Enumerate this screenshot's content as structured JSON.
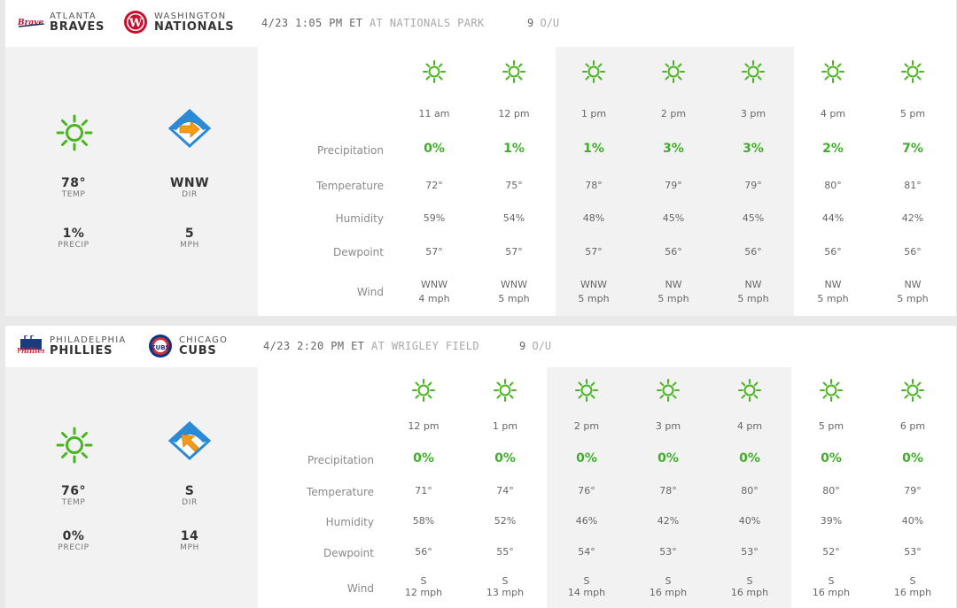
{
  "colors": {
    "accent_green": "#3fae2a",
    "sun_green": "#49b520",
    "panel_gray": "#f2f2f2",
    "arrow_orange": "#f39a16",
    "field_blue": "#2a8ad6"
  },
  "games": [
    {
      "away": {
        "city": "ATLANTA",
        "name": "BRAVES",
        "logo_icon": "braves-logo"
      },
      "home": {
        "city": "WASHINGTON",
        "name": "NATIONALS",
        "logo_icon": "nationals-logo"
      },
      "time": "4/23 1:05 PM ET",
      "venue": "AT NATIONALS PARK",
      "ou_value": "9",
      "ou_label": "O/U",
      "summary": {
        "temp": "78°",
        "temp_label": "TEMP",
        "precip": "1%",
        "precip_label": "PRECIP",
        "dir": "WNW",
        "dir_label": "DIR",
        "speed": "5",
        "speed_label": "MPH",
        "weather_icon": "sun-icon",
        "wind_icon": "wind-direction-icon"
      },
      "row_labels": {
        "precip": "Precipitation",
        "temp": "Temperature",
        "humidity": "Humidity",
        "dewpoint": "Dewpoint",
        "wind": "Wind"
      },
      "hours": [
        {
          "time": "11 am",
          "precip": "0%",
          "temp": "72°",
          "humidity": "59%",
          "dewpoint": "57°",
          "wind_dir": "WNW",
          "wind_speed": "4 mph",
          "icon": "sun-icon"
        },
        {
          "time": "12 pm",
          "precip": "1%",
          "temp": "75°",
          "humidity": "54%",
          "dewpoint": "57°",
          "wind_dir": "WNW",
          "wind_speed": "5 mph",
          "icon": "sun-icon"
        },
        {
          "time": "1 pm",
          "precip": "1%",
          "temp": "78°",
          "humidity": "48%",
          "dewpoint": "57°",
          "wind_dir": "WNW",
          "wind_speed": "5 mph",
          "icon": "sun-icon"
        },
        {
          "time": "2 pm",
          "precip": "3%",
          "temp": "79°",
          "humidity": "45%",
          "dewpoint": "56°",
          "wind_dir": "NW",
          "wind_speed": "5 mph",
          "icon": "sun-icon"
        },
        {
          "time": "3 pm",
          "precip": "3%",
          "temp": "79°",
          "humidity": "45%",
          "dewpoint": "56°",
          "wind_dir": "NW",
          "wind_speed": "5 mph",
          "icon": "sun-icon"
        },
        {
          "time": "4 pm",
          "precip": "2%",
          "temp": "80°",
          "humidity": "44%",
          "dewpoint": "56°",
          "wind_dir": "NW",
          "wind_speed": "5 mph",
          "icon": "sun-icon"
        },
        {
          "time": "5 pm",
          "precip": "7%",
          "temp": "81°",
          "humidity": "42%",
          "dewpoint": "56°",
          "wind_dir": "NW",
          "wind_speed": "5 mph",
          "icon": "sun-icon"
        }
      ]
    },
    {
      "away": {
        "city": "PHILADELPHIA",
        "name": "PHILLIES",
        "logo_icon": "phillies-logo"
      },
      "home": {
        "city": "CHICAGO",
        "name": "CUBS",
        "logo_icon": "cubs-logo"
      },
      "time": "4/23 2:20 PM ET",
      "venue": "AT WRIGLEY FIELD",
      "ou_value": "9",
      "ou_label": "O/U",
      "summary": {
        "temp": "76°",
        "temp_label": "TEMP",
        "precip": "0%",
        "precip_label": "PRECIP",
        "dir": "S",
        "dir_label": "DIR",
        "speed": "14",
        "speed_label": "MPH",
        "weather_icon": "sun-icon",
        "wind_icon": "wind-direction-icon"
      },
      "row_labels": {
        "precip": "Precipitation",
        "temp": "Temperature",
        "humidity": "Humidity",
        "dewpoint": "Dewpoint",
        "wind": "Wind"
      },
      "hours": [
        {
          "time": "12 pm",
          "precip": "0%",
          "temp": "71°",
          "humidity": "58%",
          "dewpoint": "56°",
          "wind_dir": "S",
          "wind_speed": "12 mph",
          "icon": "sun-icon"
        },
        {
          "time": "1 pm",
          "precip": "0%",
          "temp": "74°",
          "humidity": "52%",
          "dewpoint": "55°",
          "wind_dir": "S",
          "wind_speed": "13 mph",
          "icon": "sun-icon"
        },
        {
          "time": "2 pm",
          "precip": "0%",
          "temp": "76°",
          "humidity": "46%",
          "dewpoint": "54°",
          "wind_dir": "S",
          "wind_speed": "14 mph",
          "icon": "sun-icon"
        },
        {
          "time": "3 pm",
          "precip": "0%",
          "temp": "78°",
          "humidity": "42%",
          "dewpoint": "53°",
          "wind_dir": "S",
          "wind_speed": "16 mph",
          "icon": "sun-icon"
        },
        {
          "time": "4 pm",
          "precip": "0%",
          "temp": "80°",
          "humidity": "40%",
          "dewpoint": "53°",
          "wind_dir": "S",
          "wind_speed": "16 mph",
          "icon": "sun-icon"
        },
        {
          "time": "5 pm",
          "precip": "0%",
          "temp": "80°",
          "humidity": "39%",
          "dewpoint": "52°",
          "wind_dir": "S",
          "wind_speed": "16 mph",
          "icon": "sun-icon"
        },
        {
          "time": "6 pm",
          "precip": "0%",
          "temp": "79°",
          "humidity": "40%",
          "dewpoint": "53°",
          "wind_dir": "S",
          "wind_speed": "16 mph",
          "icon": "sun-icon"
        }
      ]
    }
  ]
}
